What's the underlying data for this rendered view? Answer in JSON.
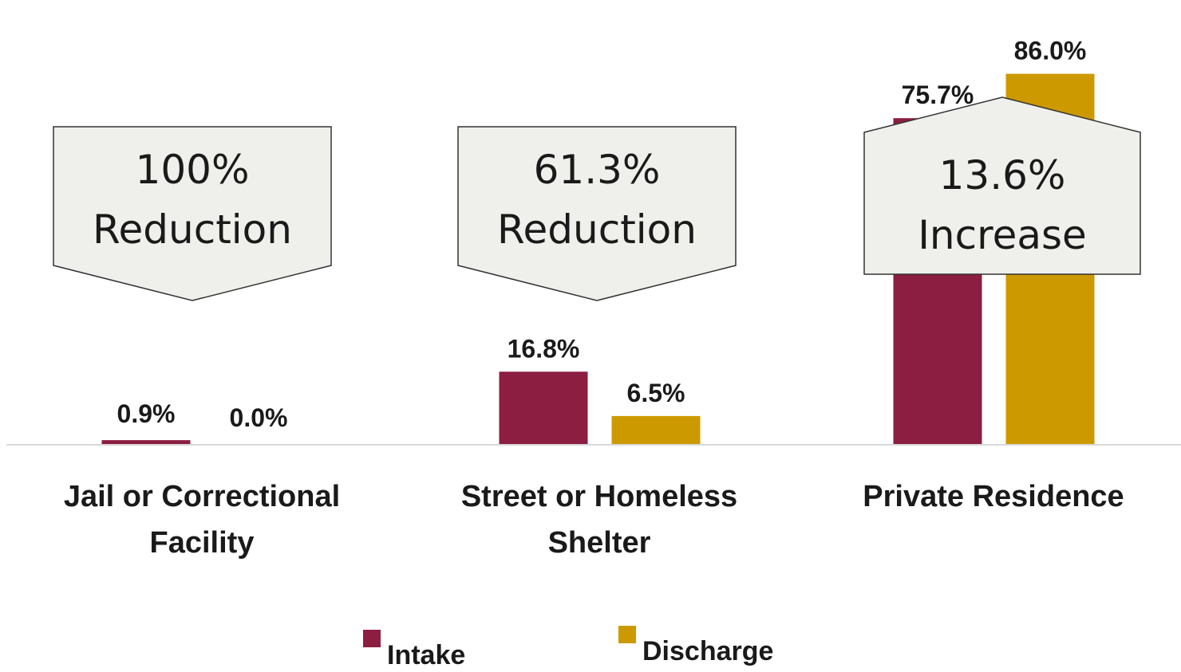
{
  "chart_data": {
    "type": "bar",
    "categories": [
      [
        "Jail or Correctional",
        "Facility"
      ],
      [
        "Street or Homeless",
        "Shelter"
      ],
      [
        "Private Residence"
      ]
    ],
    "series": [
      {
        "name": "Intake",
        "values": [
          0.9,
          16.8,
          75.7
        ],
        "labels": [
          "0.9%",
          "16.8%",
          "75.7%"
        ],
        "color": "#8b1e41"
      },
      {
        "name": "Discharge",
        "values": [
          0.0,
          6.5,
          86.0
        ],
        "labels": [
          "0.0%",
          "6.5%",
          "86.0%"
        ],
        "color": "#cc9900"
      }
    ],
    "ylim": [
      0,
      100
    ],
    "annotations": [
      {
        "lines": [
          "100%",
          "Reduction"
        ],
        "direction": "down"
      },
      {
        "lines": [
          "61.3%",
          "Reduction"
        ],
        "direction": "down"
      },
      {
        "lines": [
          "13.6%",
          "Increase"
        ],
        "direction": "up"
      }
    ],
    "legend_position": "bottom",
    "grid": false,
    "callout_color": "#efefeb"
  }
}
